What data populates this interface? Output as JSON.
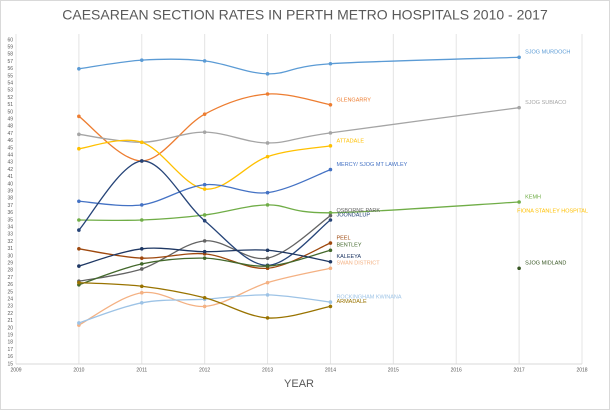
{
  "chart_data": {
    "type": "line",
    "title": "CAESAREAN SECTION RATES IN PERTH METRO HOSPITALS 2010 - 2017",
    "x_label": "YEAR",
    "x": [
      2010,
      2011,
      2012,
      2013,
      2014,
      2017
    ],
    "xlim": [
      2009,
      2018
    ],
    "xticks": [
      2009,
      2010,
      2011,
      2012,
      2013,
      2014,
      2015,
      2016,
      2017,
      2018
    ],
    "ylim": [
      15,
      60
    ],
    "yticks": [
      15,
      16,
      17,
      18,
      19,
      20,
      21,
      22,
      23,
      24,
      25,
      26,
      27,
      28,
      29,
      30,
      31,
      32,
      33,
      34,
      35,
      36,
      37,
      38,
      39,
      40,
      41,
      42,
      43,
      44,
      45,
      46,
      47,
      48,
      49,
      50,
      51,
      52,
      53,
      54,
      55,
      56,
      57,
      58,
      59,
      60
    ],
    "grid": true,
    "series": [
      {
        "name": "SJOG MURDOCH",
        "color": "#5b9bd5",
        "values": [
          56,
          57.2,
          57.1,
          55.3,
          56.7,
          57.6
        ]
      },
      {
        "name": "GLENGARRY",
        "color": "#ed7d31",
        "values": [
          49.4,
          43.2,
          49.7,
          52.5,
          51,
          null
        ]
      },
      {
        "name": "SJOG SUBIACO",
        "color": "#a5a5a5",
        "values": [
          46.9,
          45.8,
          47.2,
          45.7,
          47.1,
          50.6
        ]
      },
      {
        "name": "ATTADALE",
        "color": "#ffc000",
        "values": [
          44.9,
          45.8,
          39.3,
          43.8,
          45.3,
          null
        ]
      },
      {
        "name": "MERCY/ SJOG MT LAWLEY",
        "color": "#4472c4",
        "values": [
          37.6,
          37.1,
          39.9,
          38.8,
          42,
          null
        ]
      },
      {
        "name": "KEMH",
        "color": "#70ad47",
        "values": [
          35,
          35,
          35.7,
          37.1,
          36,
          37.5
        ]
      },
      {
        "name": "OSBORNE PARK",
        "color": "#636363",
        "values": [
          26.5,
          28.2,
          32.1,
          29.7,
          35.6,
          null
        ]
      },
      {
        "name": "JOONDALUP",
        "color": "#264478",
        "values": [
          33.6,
          43.2,
          34.9,
          28.7,
          35,
          null
        ]
      },
      {
        "name": "PEEL",
        "color": "#9e480e",
        "values": [
          31,
          29.7,
          30.3,
          28.3,
          31.8,
          null
        ]
      },
      {
        "name": "BENTLEY",
        "color": "#43682b",
        "values": [
          26,
          28.9,
          29.7,
          28.6,
          30.8,
          null
        ]
      },
      {
        "name": "KALEEYA",
        "color": "#1f3864",
        "values": [
          28.6,
          31,
          30.6,
          30.8,
          29.2,
          null
        ]
      },
      {
        "name": "SWAN DISTRICT",
        "color": "#f4b183",
        "values": [
          20.4,
          24.9,
          23,
          26.3,
          28.3,
          null
        ]
      },
      {
        "name": "ROCKINGHAM KWINANA",
        "color": "#9dc3e6",
        "values": [
          20.7,
          23.5,
          24,
          24.6,
          23.6,
          null
        ]
      },
      {
        "name": "ARMADALE",
        "color": "#997300",
        "values": [
          26.3,
          25.8,
          24.2,
          21.4,
          23,
          null
        ]
      },
      {
        "name": "SJOG MIDLAND",
        "color": "#375623",
        "values": [
          null,
          null,
          null,
          null,
          null,
          28.3
        ]
      }
    ],
    "annotations": [
      "FIONA STANLEY HOSPITAL"
    ]
  }
}
